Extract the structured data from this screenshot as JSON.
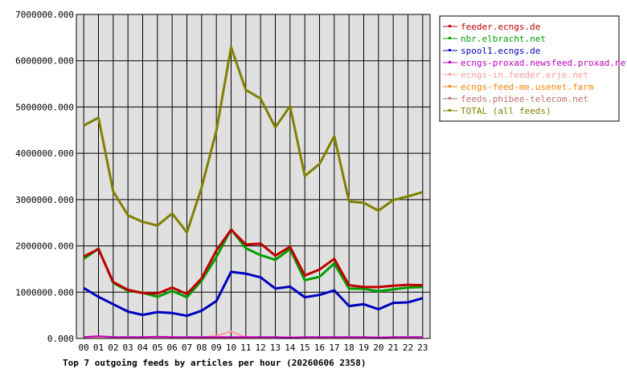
{
  "chart_data": {
    "type": "line",
    "title": "Top 7 outgoing feeds by articles per hour (20260606 2358)",
    "xlabel": "",
    "ylabel": "",
    "categories": [
      "00",
      "01",
      "02",
      "03",
      "04",
      "05",
      "06",
      "07",
      "08",
      "09",
      "10",
      "11",
      "12",
      "13",
      "14",
      "15",
      "16",
      "17",
      "18",
      "19",
      "20",
      "21",
      "22",
      "23"
    ],
    "ylim": [
      0,
      7000000
    ],
    "yticks": [
      "0.000",
      "1000000.000",
      "2000000.000",
      "3000000.000",
      "4000000.000",
      "5000000.000",
      "6000000.000",
      "7000000.000"
    ],
    "ytick_values": [
      0,
      1000000,
      2000000,
      3000000,
      4000000,
      5000000,
      6000000,
      7000000
    ],
    "grid": true,
    "legend_position": "right",
    "plot_background": "#e0e0e0",
    "series": [
      {
        "name": "feeder.ecngs.de",
        "color": "#c00000",
        "values": [
          1770000,
          1930000,
          1220000,
          1050000,
          980000,
          970000,
          1100000,
          960000,
          1300000,
          1900000,
          2350000,
          2030000,
          2050000,
          1790000,
          1980000,
          1360000,
          1490000,
          1720000,
          1150000,
          1110000,
          1110000,
          1140000,
          1160000,
          1150000
        ]
      },
      {
        "name": "nbr.elbracht.net",
        "color": "#00a000",
        "values": [
          1720000,
          1940000,
          1200000,
          1030000,
          990000,
          900000,
          1030000,
          890000,
          1250000,
          1760000,
          2360000,
          1950000,
          1800000,
          1700000,
          1930000,
          1260000,
          1330000,
          1620000,
          1080000,
          1070000,
          1020000,
          1060000,
          1100000,
          1110000
        ]
      },
      {
        "name": "spool1.ecngs.de",
        "color": "#0000c0",
        "values": [
          1090000,
          900000,
          740000,
          580000,
          510000,
          570000,
          550000,
          490000,
          600000,
          810000,
          1440000,
          1400000,
          1320000,
          1080000,
          1120000,
          890000,
          940000,
          1040000,
          700000,
          740000,
          630000,
          770000,
          780000,
          870000
        ]
      },
      {
        "name": "ecngs-proxad.newsfeed.proxad.net",
        "color": "#c000c0",
        "values": [
          30000,
          50000,
          30000,
          30000,
          30000,
          40000,
          30000,
          30000,
          30000,
          30000,
          30000,
          30000,
          30000,
          30000,
          20000,
          30000,
          30000,
          30000,
          30000,
          30000,
          20000,
          30000,
          30000,
          30000
        ]
      },
      {
        "name": "ecngs-in.feeder.erje.net",
        "color": "#ff9a9a",
        "values": [
          20000,
          20000,
          20000,
          20000,
          20000,
          20000,
          20000,
          20000,
          20000,
          60000,
          150000,
          20000,
          20000,
          20000,
          20000,
          20000,
          20000,
          20000,
          20000,
          20000,
          20000,
          20000,
          20000,
          20000
        ]
      },
      {
        "name": "ecngs-feed-me.usenet.farm",
        "color": "#ff8000",
        "values": [
          10000,
          10000,
          10000,
          10000,
          10000,
          10000,
          10000,
          10000,
          10000,
          10000,
          10000,
          10000,
          10000,
          10000,
          10000,
          10000,
          10000,
          10000,
          10000,
          10000,
          10000,
          10000,
          10000,
          10000
        ]
      },
      {
        "name": "feeds.phibee-telecom.net",
        "color": "#c07070",
        "values": [
          20000,
          30000,
          20000,
          20000,
          20000,
          30000,
          20000,
          20000,
          20000,
          20000,
          20000,
          20000,
          20000,
          20000,
          20000,
          20000,
          20000,
          20000,
          20000,
          20000,
          20000,
          20000,
          20000,
          20000
        ]
      },
      {
        "name": "TOTAL (all feeds)",
        "color": "#808000",
        "values": [
          4600000,
          4770000,
          3180000,
          2660000,
          2520000,
          2440000,
          2700000,
          2290000,
          3260000,
          4490000,
          6290000,
          5370000,
          5180000,
          4560000,
          5020000,
          3510000,
          3770000,
          4370000,
          2960000,
          2930000,
          2760000,
          2990000,
          3070000,
          3160000
        ]
      }
    ]
  }
}
